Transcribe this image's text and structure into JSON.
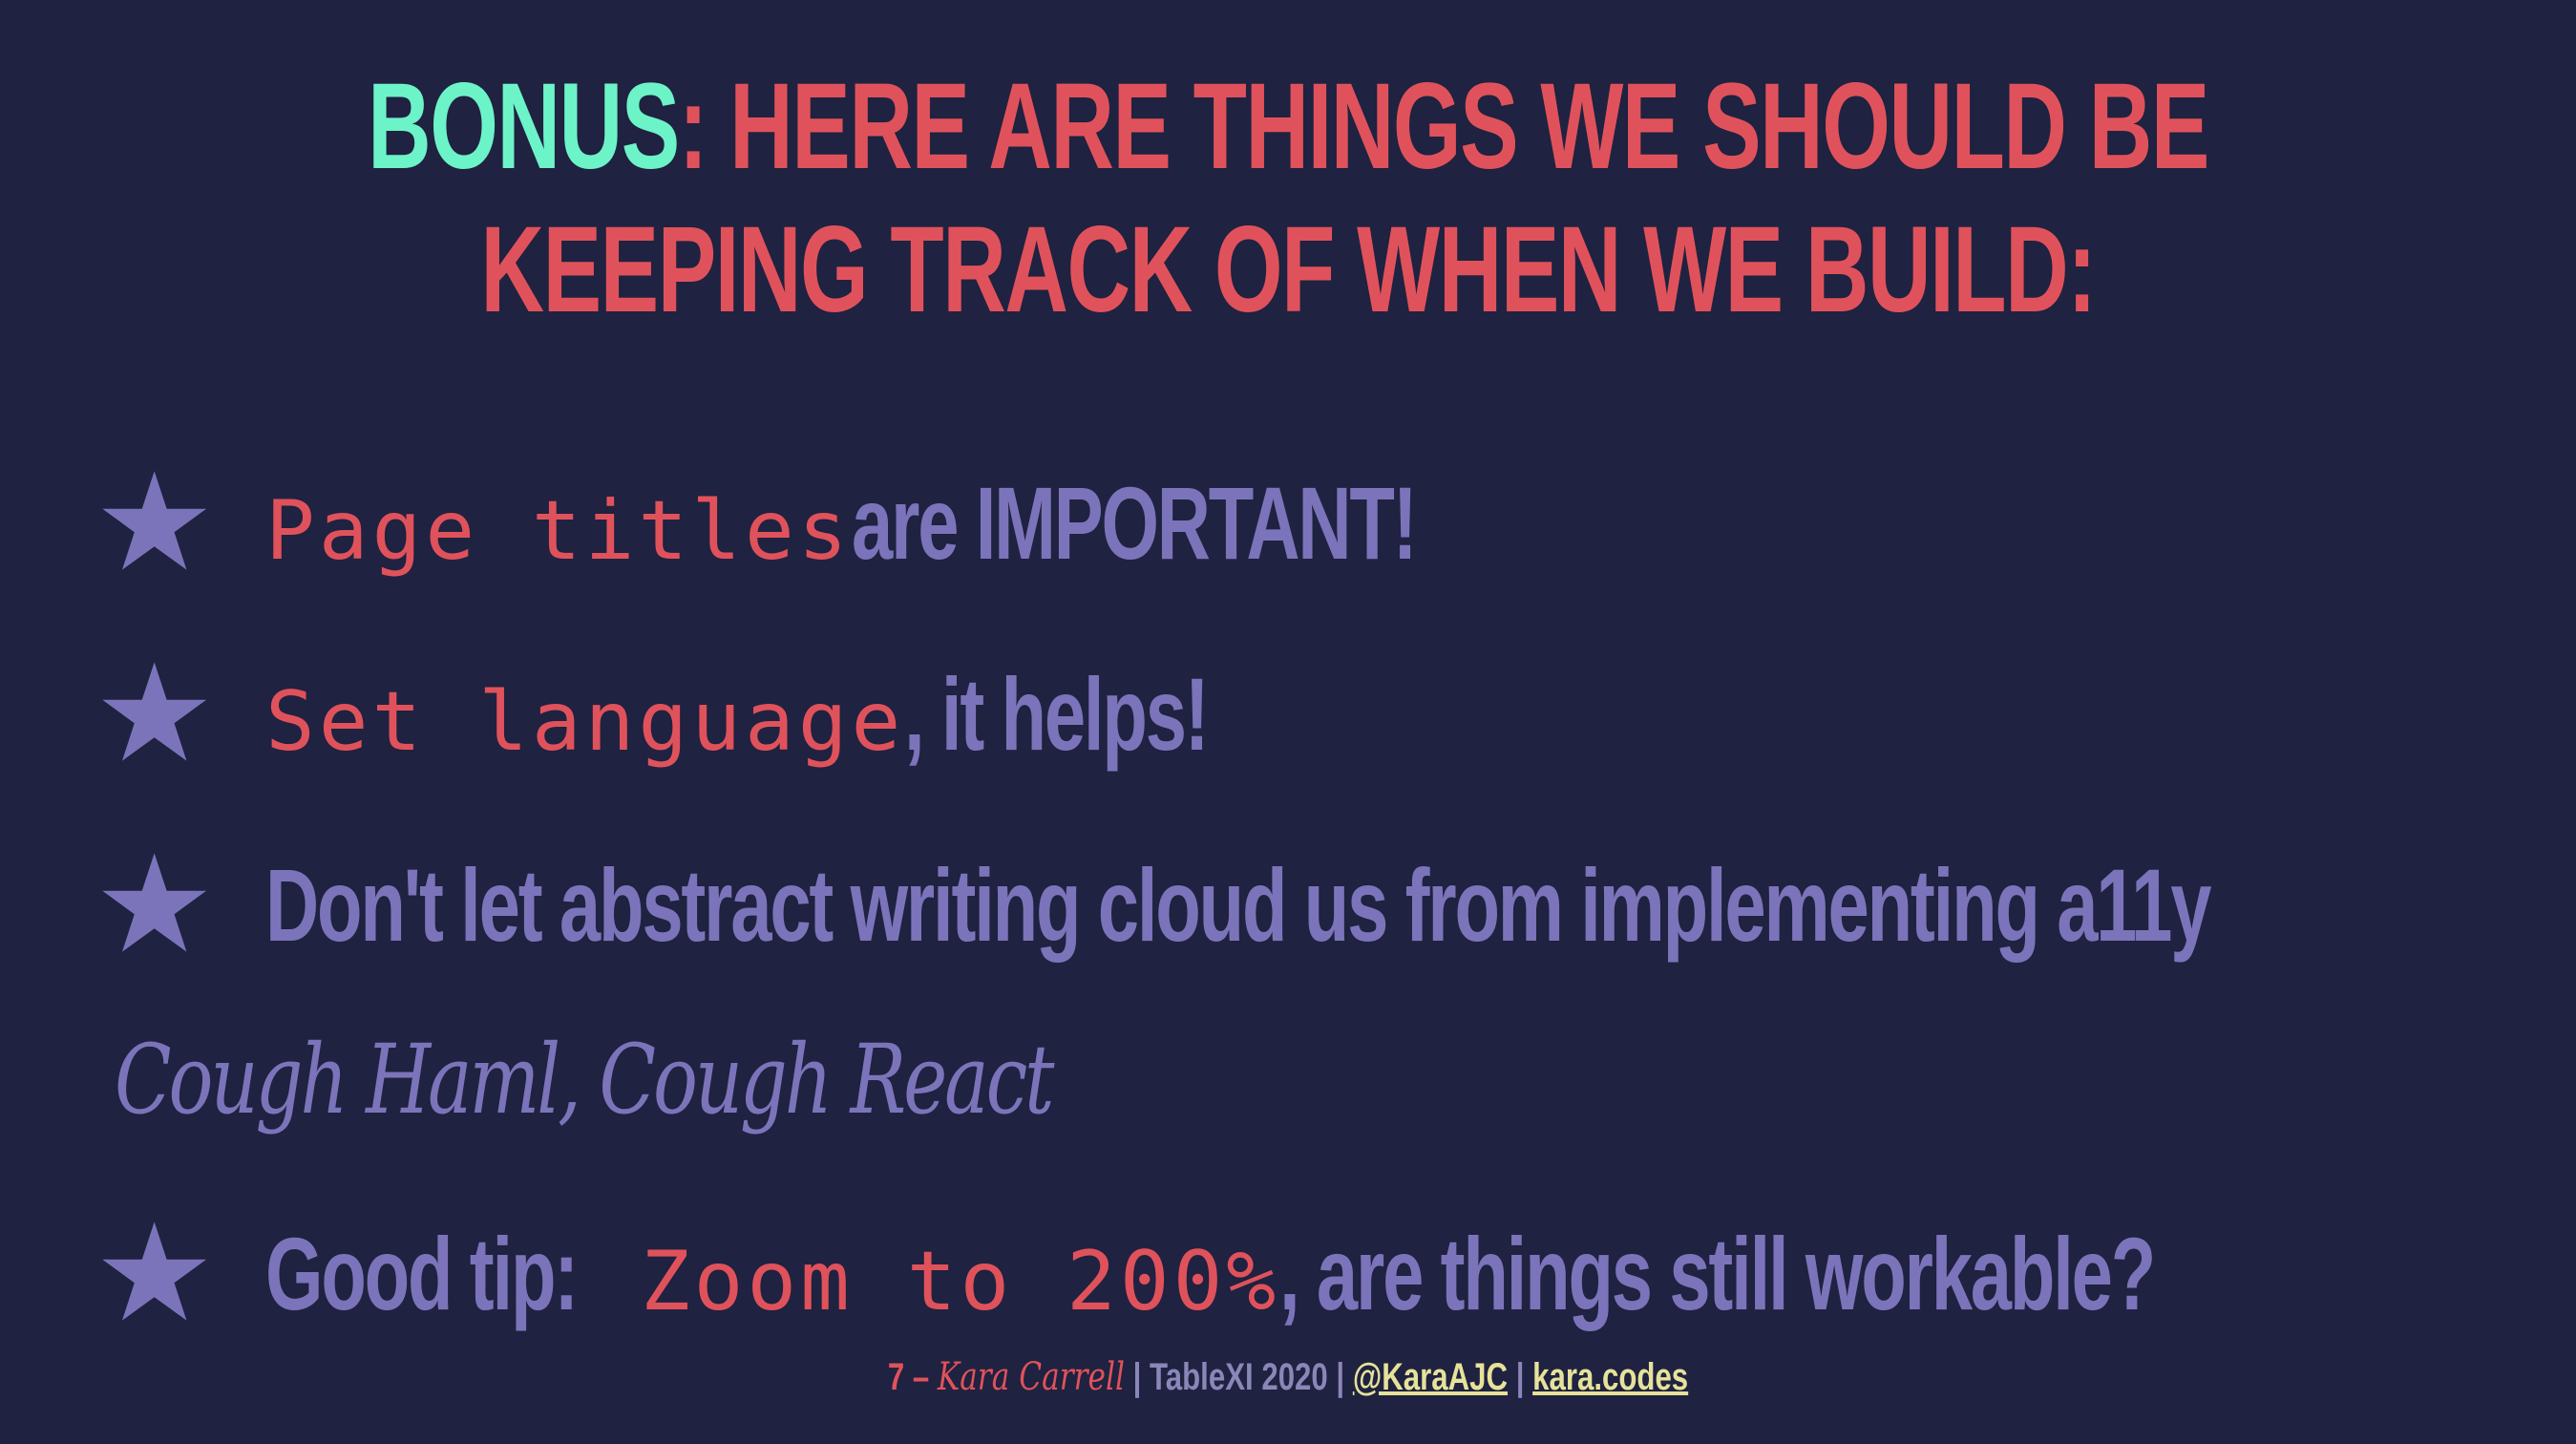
{
  "title": {
    "accent": "BONUS",
    "colon": ":",
    "line1_rest": " HERE ARE THINGS WE SHOULD BE",
    "line2": "KEEPING TRACK OF WHEN WE BUILD:"
  },
  "bullets": [
    {
      "code": "Page titles",
      "text": " are IMPORTANT!"
    },
    {
      "code": "Set language",
      "text": ", it helps!"
    },
    {
      "text": "Don't let abstract writing cloud us from implementing a11y"
    },
    {
      "lead": "Good tip: ",
      "code": "Zoom to 200%",
      "text": ", are things still workable?"
    }
  ],
  "aside": "Cough Haml, Cough React",
  "footer": {
    "page": "7",
    "dash": " – ",
    "author": "Kara Carrell",
    "sep": " | ",
    "event": "TableXI 2020",
    "twitter": "@KaraAJC",
    "site": "kara.codes"
  },
  "colors": {
    "background": "#1f2240",
    "accent": "#6df3c8",
    "red": "#e0525b",
    "purple": "#7c74ba"
  },
  "icons": {
    "bullet": "star-icon"
  }
}
